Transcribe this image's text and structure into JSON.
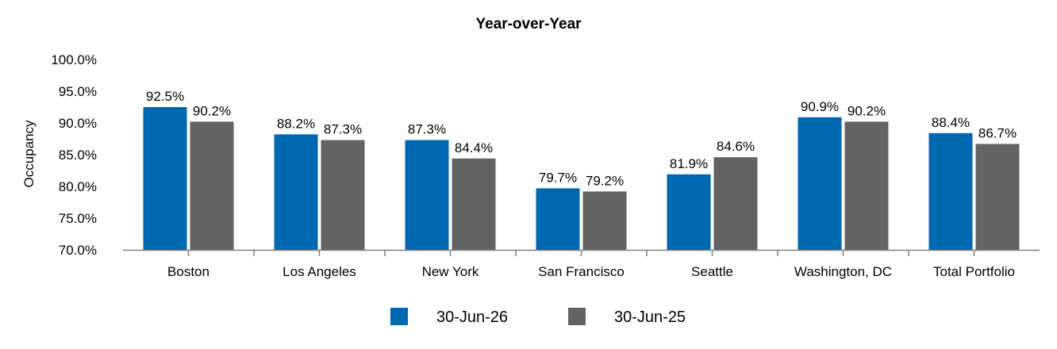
{
  "chart_data": {
    "type": "bar",
    "title": "Year-over-Year",
    "xlabel": "",
    "ylabel": "Occupancy",
    "ylim": [
      70.0,
      100.0
    ],
    "yticks": [
      "70.0%",
      "75.0%",
      "80.0%",
      "85.0%",
      "90.0%",
      "95.0%",
      "100.0%"
    ],
    "categories": [
      "Boston",
      "Los Angeles",
      "New York",
      "San Francisco",
      "Seattle",
      "Washington, DC",
      "Total Portfolio"
    ],
    "series": [
      {
        "name": "30-Jun-26",
        "color": "#0067b1",
        "values": [
          92.5,
          88.2,
          87.3,
          79.7,
          81.9,
          90.9,
          88.4
        ],
        "labels": [
          "92.5%",
          "88.2%",
          "87.3%",
          "79.7%",
          "81.9%",
          "90.9%",
          "88.4%"
        ]
      },
      {
        "name": "30-Jun-25",
        "color": "#636363",
        "values": [
          90.2,
          87.3,
          84.4,
          79.2,
          84.6,
          90.2,
          86.7
        ],
        "labels": [
          "90.2%",
          "87.3%",
          "84.4%",
          "79.2%",
          "84.6%",
          "90.2%",
          "86.7%"
        ]
      }
    ],
    "grid": false,
    "legend": "bottom"
  }
}
